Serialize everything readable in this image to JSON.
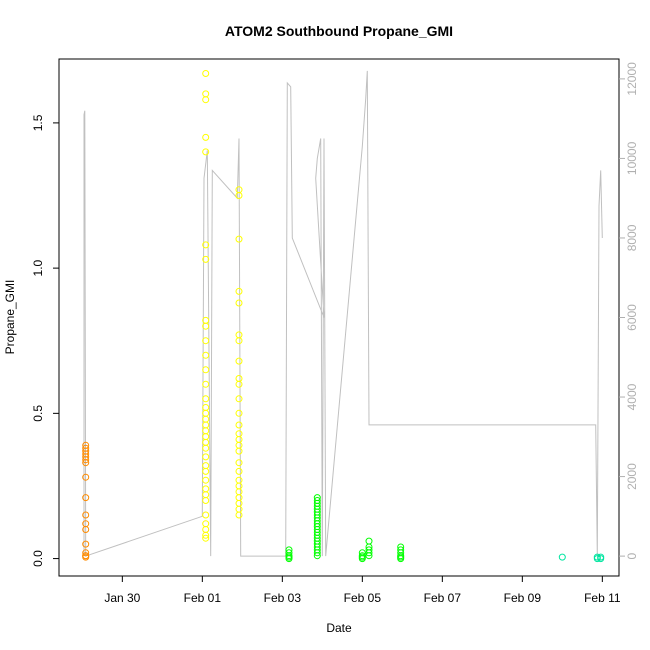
{
  "chart_data": {
    "type": "scatter",
    "title": "ATOM2 Southbound Propane_GMI",
    "xlabel": "Date",
    "ylabel": "Propane_GMI",
    "x_ticks": [
      "Jan 30",
      "Feb 01",
      "Feb 03",
      "Feb 05",
      "Feb 07",
      "Feb 09",
      "Feb 11"
    ],
    "x_range": [
      "2017-01-28T10:00",
      "2017-02-11T10:00"
    ],
    "y_ticks": [
      0.0,
      0.5,
      1.0,
      1.5
    ],
    "y_tick_labels": [
      "0.0",
      "0.5",
      "1.0",
      "1.5"
    ],
    "ylim": [
      -0.06,
      1.72
    ],
    "y2_ticks": [
      0,
      2000,
      4000,
      6000,
      8000,
      10000,
      12000
    ],
    "y2lim": [
      -500,
      12500
    ],
    "grid": false,
    "series": [
      {
        "color": "#ff8c00",
        "points": [
          [
            "2017-01-29T02:00",
            0.39
          ],
          [
            "2017-01-29T02:00",
            0.38
          ],
          [
            "2017-01-29T02:00",
            0.37
          ],
          [
            "2017-01-29T02:00",
            0.36
          ],
          [
            "2017-01-29T02:00",
            0.35
          ],
          [
            "2017-01-29T02:00",
            0.34
          ],
          [
            "2017-01-29T02:00",
            0.33
          ],
          [
            "2017-01-29T02:00",
            0.28
          ],
          [
            "2017-01-29T02:00",
            0.21
          ],
          [
            "2017-01-29T02:00",
            0.15
          ],
          [
            "2017-01-29T02:00",
            0.12
          ],
          [
            "2017-01-29T02:00",
            0.1
          ],
          [
            "2017-01-29T02:00",
            0.05
          ],
          [
            "2017-01-29T02:00",
            0.02
          ],
          [
            "2017-01-29T02:00",
            0.01
          ],
          [
            "2017-01-29T02:00",
            0.01
          ],
          [
            "2017-01-29T02:00",
            0.005
          ]
        ]
      },
      {
        "color": "#ffff00",
        "points": [
          [
            "2017-02-01T02:00",
            1.67
          ],
          [
            "2017-02-01T02:00",
            1.6
          ],
          [
            "2017-02-01T02:00",
            1.58
          ],
          [
            "2017-02-01T02:00",
            1.45
          ],
          [
            "2017-02-01T02:00",
            1.4
          ],
          [
            "2017-02-01T02:00",
            1.08
          ],
          [
            "2017-02-01T02:00",
            1.03
          ],
          [
            "2017-02-01T02:00",
            0.82
          ],
          [
            "2017-02-01T02:00",
            0.8
          ],
          [
            "2017-02-01T02:00",
            0.75
          ],
          [
            "2017-02-01T02:00",
            0.7
          ],
          [
            "2017-02-01T02:00",
            0.65
          ],
          [
            "2017-02-01T02:00",
            0.6
          ],
          [
            "2017-02-01T02:00",
            0.55
          ],
          [
            "2017-02-01T02:00",
            0.52
          ],
          [
            "2017-02-01T02:00",
            0.5
          ],
          [
            "2017-02-01T02:00",
            0.48
          ],
          [
            "2017-02-01T02:00",
            0.46
          ],
          [
            "2017-02-01T02:00",
            0.44
          ],
          [
            "2017-02-01T02:00",
            0.42
          ],
          [
            "2017-02-01T02:00",
            0.4
          ],
          [
            "2017-02-01T02:00",
            0.38
          ],
          [
            "2017-02-01T02:00",
            0.35
          ],
          [
            "2017-02-01T02:00",
            0.32
          ],
          [
            "2017-02-01T02:00",
            0.3
          ],
          [
            "2017-02-01T02:00",
            0.27
          ],
          [
            "2017-02-01T02:00",
            0.24
          ],
          [
            "2017-02-01T02:00",
            0.22
          ],
          [
            "2017-02-01T02:00",
            0.2
          ],
          [
            "2017-02-01T02:00",
            0.15
          ],
          [
            "2017-02-01T02:00",
            0.12
          ],
          [
            "2017-02-01T02:00",
            0.1
          ],
          [
            "2017-02-01T02:00",
            0.08
          ],
          [
            "2017-02-01T02:00",
            0.07
          ],
          [
            "2017-02-01T22:00",
            1.27
          ],
          [
            "2017-02-01T22:00",
            1.25
          ],
          [
            "2017-02-01T22:00",
            1.1
          ],
          [
            "2017-02-01T22:00",
            0.92
          ],
          [
            "2017-02-01T22:00",
            0.88
          ],
          [
            "2017-02-01T22:00",
            0.77
          ],
          [
            "2017-02-01T22:00",
            0.75
          ],
          [
            "2017-02-01T22:00",
            0.68
          ],
          [
            "2017-02-01T22:00",
            0.62
          ],
          [
            "2017-02-01T22:00",
            0.6
          ],
          [
            "2017-02-01T22:00",
            0.55
          ],
          [
            "2017-02-01T22:00",
            0.5
          ],
          [
            "2017-02-01T22:00",
            0.46
          ],
          [
            "2017-02-01T22:00",
            0.43
          ],
          [
            "2017-02-01T22:00",
            0.41
          ],
          [
            "2017-02-01T22:00",
            0.39
          ],
          [
            "2017-02-01T22:00",
            0.37
          ],
          [
            "2017-02-01T22:00",
            0.33
          ],
          [
            "2017-02-01T22:00",
            0.3
          ],
          [
            "2017-02-01T22:00",
            0.27
          ],
          [
            "2017-02-01T22:00",
            0.25
          ],
          [
            "2017-02-01T22:00",
            0.23
          ],
          [
            "2017-02-01T22:00",
            0.21
          ],
          [
            "2017-02-01T22:00",
            0.19
          ],
          [
            "2017-02-01T22:00",
            0.17
          ],
          [
            "2017-02-01T22:00",
            0.15
          ]
        ]
      },
      {
        "color": "#00ff00",
        "points": [
          [
            "2017-02-03T04:00",
            0.03
          ],
          [
            "2017-02-03T04:00",
            0.02
          ],
          [
            "2017-02-03T04:00",
            0.01
          ],
          [
            "2017-02-03T04:00",
            0.005
          ],
          [
            "2017-02-03T04:00",
            0.0
          ],
          [
            "2017-02-03T21:00",
            0.21
          ],
          [
            "2017-02-03T21:00",
            0.2
          ],
          [
            "2017-02-03T21:00",
            0.19
          ],
          [
            "2017-02-03T21:00",
            0.18
          ],
          [
            "2017-02-03T21:00",
            0.17
          ],
          [
            "2017-02-03T21:00",
            0.16
          ],
          [
            "2017-02-03T21:00",
            0.15
          ],
          [
            "2017-02-03T21:00",
            0.14
          ],
          [
            "2017-02-03T21:00",
            0.13
          ],
          [
            "2017-02-03T21:00",
            0.12
          ],
          [
            "2017-02-03T21:00",
            0.11
          ],
          [
            "2017-02-03T21:00",
            0.1
          ],
          [
            "2017-02-03T21:00",
            0.09
          ],
          [
            "2017-02-03T21:00",
            0.08
          ],
          [
            "2017-02-03T21:00",
            0.07
          ],
          [
            "2017-02-03T21:00",
            0.06
          ],
          [
            "2017-02-03T21:00",
            0.05
          ],
          [
            "2017-02-03T21:00",
            0.04
          ],
          [
            "2017-02-03T21:00",
            0.03
          ],
          [
            "2017-02-03T21:00",
            0.02
          ],
          [
            "2017-02-03T21:00",
            0.01
          ],
          [
            "2017-02-05T00:00",
            0.02
          ],
          [
            "2017-02-05T00:00",
            0.01
          ],
          [
            "2017-02-05T00:00",
            0.005
          ],
          [
            "2017-02-05T00:00",
            0.0
          ],
          [
            "2017-02-05T04:00",
            0.06
          ],
          [
            "2017-02-05T04:00",
            0.04
          ],
          [
            "2017-02-05T04:00",
            0.03
          ],
          [
            "2017-02-05T04:00",
            0.02
          ],
          [
            "2017-02-05T04:00",
            0.01
          ],
          [
            "2017-02-05T23:00",
            0.04
          ],
          [
            "2017-02-05T23:00",
            0.03
          ],
          [
            "2017-02-05T23:00",
            0.02
          ],
          [
            "2017-02-05T23:00",
            0.01
          ],
          [
            "2017-02-05T23:00",
            0.005
          ],
          [
            "2017-02-05T23:00",
            0.0
          ]
        ]
      },
      {
        "color": "#00e5a0",
        "points": [
          [
            "2017-02-10T00:00",
            0.005
          ],
          [
            "2017-02-10T21:00",
            0.005
          ],
          [
            "2017-02-10T21:00",
            0.0
          ],
          [
            "2017-02-10T23:00",
            0.005
          ],
          [
            "2017-02-10T23:00",
            0.0
          ]
        ]
      }
    ],
    "secondary_line": {
      "color": "#c0c0c0",
      "points": [
        [
          "2017-01-29T01:00",
          0
        ],
        [
          "2017-01-29T01:00",
          11100
        ],
        [
          "2017-01-29T01:30",
          11200
        ],
        [
          "2017-01-29T02:00",
          0
        ],
        [
          "2017-02-01T00:00",
          1000
        ],
        [
          "2017-02-01T01:00",
          9500
        ],
        [
          "2017-02-01T03:00",
          10200
        ],
        [
          "2017-02-01T05:00",
          0
        ],
        [
          "2017-02-01T06:00",
          9700
        ],
        [
          "2017-02-01T21:00",
          9000
        ],
        [
          "2017-02-01T22:00",
          10500
        ],
        [
          "2017-02-01T23:00",
          0
        ],
        [
          "2017-02-03T02:00",
          0
        ],
        [
          "2017-02-03T03:00",
          11900
        ],
        [
          "2017-02-03T05:00",
          11800
        ],
        [
          "2017-02-03T06:00",
          8000
        ],
        [
          "2017-02-04T01:00",
          6000
        ],
        [
          "2017-02-03T20:00",
          9500
        ],
        [
          "2017-02-03T21:00",
          10000
        ],
        [
          "2017-02-03T23:00",
          10500
        ],
        [
          "2017-02-04T00:00",
          0
        ],
        [
          "2017-02-04T01:00",
          10500
        ],
        [
          "2017-02-04T02:00",
          0
        ],
        [
          "2017-02-05T00:00",
          10300
        ],
        [
          "2017-02-05T02:00",
          11500
        ],
        [
          "2017-02-05T03:00",
          12200
        ],
        [
          "2017-02-05T04:00",
          3300
        ],
        [
          "2017-02-10T12:00",
          3300
        ],
        [
          "2017-02-10T20:00",
          3300
        ],
        [
          "2017-02-10T21:00",
          0
        ],
        [
          "2017-02-10T22:00",
          8800
        ],
        [
          "2017-02-10T23:00",
          9700
        ],
        [
          "2017-02-11T00:00",
          8000
        ]
      ]
    }
  }
}
